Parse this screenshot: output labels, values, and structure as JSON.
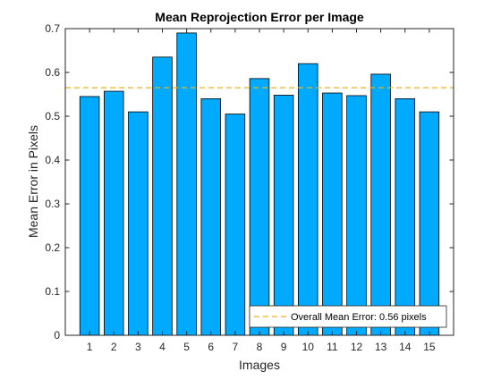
{
  "chart_data": {
    "type": "bar",
    "title": "Mean Reprojection Error per Image",
    "xlabel": "Images",
    "ylabel": "Mean Error in Pixels",
    "categories": [
      "1",
      "2",
      "3",
      "4",
      "5",
      "6",
      "7",
      "8",
      "9",
      "10",
      "11",
      "12",
      "13",
      "14",
      "15"
    ],
    "values": [
      0.545,
      0.557,
      0.51,
      0.635,
      0.69,
      0.54,
      0.505,
      0.586,
      0.548,
      0.62,
      0.553,
      0.547,
      0.596,
      0.54,
      0.51
    ],
    "ylim": [
      0,
      0.7
    ],
    "xlim": [
      0,
      16
    ],
    "yticks": [
      "0",
      "0.1",
      "0.2",
      "0.3",
      "0.4",
      "0.5",
      "0.6",
      "0.7"
    ],
    "grid": false,
    "reference_line": {
      "value": 0.565,
      "label": "Overall Mean Error: 0.56 pixels",
      "style": "dashed"
    },
    "legend": {
      "location": "bottom-right"
    },
    "colors": {
      "bar_fill": "#00AAFF",
      "bar_edge": "#000000",
      "mean_line": "#EDB120",
      "axis": "#262626"
    }
  }
}
